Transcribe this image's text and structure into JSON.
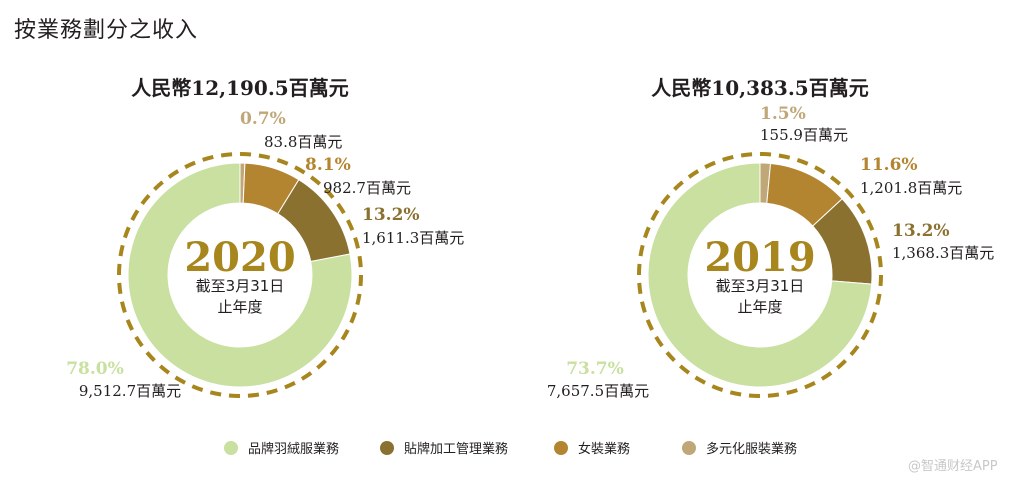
{
  "title": "按業務劃分之收入",
  "colors": {
    "brand_down": "#c9e0a0",
    "oem": "#8a7130",
    "womens": "#b48530",
    "diversified": "#bfa778",
    "dashed_ring": "#a8861e",
    "year_text": "#a8861e"
  },
  "chart_data": [
    {
      "type": "pie",
      "donut": true,
      "total_label": "人民幣12,190.5百萬元",
      "center_year": "2020",
      "center_sub1": "截至3月31日",
      "center_sub2": "止年度",
      "slices": [
        {
          "key": "brand_down",
          "pct_label": "78.0%",
          "pct": 78.0,
          "amount_label": "9,512.7百萬元"
        },
        {
          "key": "oem",
          "pct_label": "13.2%",
          "pct": 13.2,
          "amount_label": "1,611.3百萬元"
        },
        {
          "key": "womens",
          "pct_label": "8.1%",
          "pct": 8.1,
          "amount_label": "982.7百萬元"
        },
        {
          "key": "diversified",
          "pct_label": "0.7%",
          "pct": 0.7,
          "amount_label": "83.8百萬元"
        }
      ]
    },
    {
      "type": "pie",
      "donut": true,
      "total_label": "人民幣10,383.5百萬元",
      "center_year": "2019",
      "center_sub1": "截至3月31日",
      "center_sub2": "止年度",
      "slices": [
        {
          "key": "brand_down",
          "pct_label": "73.7%",
          "pct": 73.7,
          "amount_label": "7,657.5百萬元"
        },
        {
          "key": "oem",
          "pct_label": "13.2%",
          "pct": 13.2,
          "amount_label": "1,368.3百萬元"
        },
        {
          "key": "womens",
          "pct_label": "11.6%",
          "pct": 11.6,
          "amount_label": "1,201.8百萬元"
        },
        {
          "key": "diversified",
          "pct_label": "1.5%",
          "pct": 1.5,
          "amount_label": "155.9百萬元"
        }
      ]
    }
  ],
  "legend": [
    {
      "key": "brand_down",
      "label": "品牌羽絨服業務"
    },
    {
      "key": "oem",
      "label": "貼牌加工管理業務"
    },
    {
      "key": "womens",
      "label": "女裝業務"
    },
    {
      "key": "diversified",
      "label": "多元化服裝業務"
    }
  ],
  "watermark": "@智通财经APP"
}
